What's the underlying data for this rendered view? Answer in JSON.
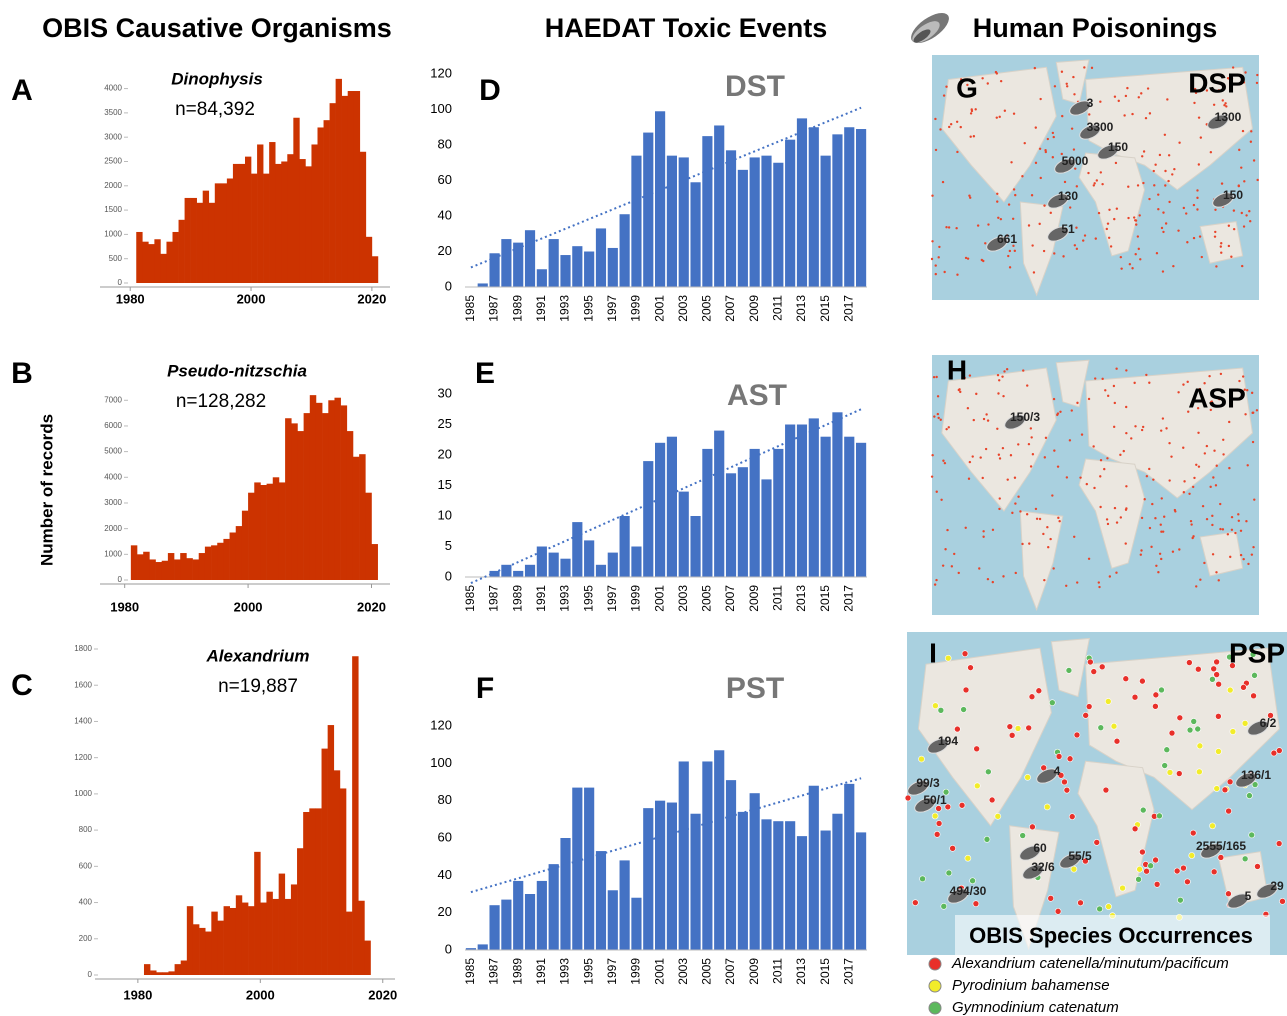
{
  "headings": [
    "OBIS Causative Organisms",
    "HAEDAT Toxic Events",
    "Human Poisonings"
  ],
  "chart_data": [
    {
      "type": "histogram",
      "panel": "A",
      "title": "Dinophysis",
      "subtitle": "n=84,392",
      "color": "#cc3300",
      "bins": [
        1981,
        1982,
        1983,
        1984,
        1985,
        1986,
        1987,
        1988,
        1989,
        1990,
        1991,
        1992,
        1993,
        1994,
        1995,
        1996,
        1997,
        1998,
        1999,
        2000,
        2001,
        2002,
        2003,
        2004,
        2005,
        2006,
        2007,
        2008,
        2009,
        2010,
        2011,
        2012,
        2013,
        2014,
        2015,
        2016,
        2017,
        2018,
        2019,
        2020,
        2021
      ],
      "values": [
        1050,
        850,
        800,
        900,
        600,
        850,
        1050,
        1300,
        1750,
        1750,
        1650,
        1900,
        1650,
        2050,
        2050,
        2150,
        2450,
        2450,
        2600,
        2250,
        2850,
        2250,
        2900,
        2450,
        2500,
        2650,
        3400,
        2550,
        2400,
        2850,
        3200,
        3350,
        3700,
        4200,
        3850,
        3950,
        3950,
        2700,
        950,
        550
      ],
      "xlim": [
        1975,
        2023
      ],
      "xticks": [
        1980,
        2000,
        2020
      ],
      "ylim": [
        0,
        4300
      ],
      "yticks": [
        0,
        500,
        1000,
        1500,
        2000,
        2500,
        3000,
        3500,
        4000
      ]
    },
    {
      "type": "histogram",
      "panel": "B",
      "title": "Pseudo-nitzschia",
      "subtitle": "n=128,282",
      "color": "#cc3300",
      "ylabel": "Number of records",
      "bins": [
        1981,
        1982,
        1983,
        1984,
        1985,
        1986,
        1987,
        1988,
        1989,
        1990,
        1991,
        1992,
        1993,
        1994,
        1995,
        1996,
        1997,
        1998,
        1999,
        2000,
        2001,
        2002,
        2003,
        2004,
        2005,
        2006,
        2007,
        2008,
        2009,
        2010,
        2011,
        2012,
        2013,
        2014,
        2015,
        2016,
        2017,
        2018,
        2019,
        2020,
        2021
      ],
      "values": [
        1350,
        1000,
        1100,
        800,
        700,
        750,
        1050,
        800,
        1050,
        850,
        800,
        1050,
        1300,
        1350,
        1450,
        1600,
        1850,
        2100,
        2700,
        3400,
        3800,
        3700,
        3750,
        4000,
        3800,
        6300,
        6100,
        5800,
        6500,
        7200,
        6900,
        6500,
        7000,
        7100,
        6800,
        5800,
        4800,
        4900,
        3400,
        1400
      ],
      "xlim": [
        1976,
        2023
      ],
      "xticks": [
        1980,
        2000,
        2020
      ],
      "ylim": [
        0,
        7400
      ],
      "yticks": [
        0,
        1000,
        2000,
        3000,
        4000,
        5000,
        6000,
        7000
      ]
    },
    {
      "type": "histogram",
      "panel": "C",
      "title": "Alexandrium",
      "subtitle": "n=19,887",
      "color": "#cc3300",
      "bins": [
        1981,
        1982,
        1983,
        1984,
        1985,
        1986,
        1987,
        1988,
        1989,
        1990,
        1991,
        1992,
        1993,
        1994,
        1995,
        1996,
        1997,
        1998,
        1999,
        2000,
        2001,
        2002,
        2003,
        2004,
        2005,
        2006,
        2007,
        2008,
        2009,
        2010,
        2011,
        2012,
        2013,
        2014,
        2015,
        2016,
        2017,
        2018
      ],
      "values": [
        60,
        25,
        15,
        15,
        20,
        60,
        80,
        380,
        280,
        260,
        240,
        350,
        300,
        380,
        370,
        440,
        400,
        380,
        680,
        400,
        460,
        420,
        560,
        420,
        500,
        700,
        900,
        920,
        920,
        1250,
        1380,
        1130,
        1030,
        350,
        1760,
        410,
        190
      ],
      "xlim": [
        1973,
        2022
      ],
      "xticks": [
        1980,
        2000,
        2020
      ],
      "ylim": [
        0,
        1800
      ],
      "yticks": [
        0,
        200,
        400,
        600,
        800,
        1000,
        1200,
        1400,
        1600,
        1800
      ]
    },
    {
      "type": "bar",
      "panel": "D",
      "title": "DST",
      "color": "#4472c4",
      "trend_start": 11,
      "trend_end": 101,
      "categories": [
        "1985",
        null,
        "1987",
        null,
        "1989",
        null,
        "1991",
        null,
        "1993",
        null,
        "1995",
        null,
        "1997",
        null,
        "1999",
        null,
        "2001",
        null,
        "2003",
        null,
        "2005",
        null,
        "2007",
        null,
        "2009",
        null,
        "2011",
        null,
        "2013",
        null,
        "2015",
        null,
        "2017",
        null
      ],
      "values": [
        0,
        2,
        19,
        27,
        25,
        32,
        10,
        27,
        18,
        23,
        20,
        33,
        22,
        41,
        74,
        87,
        99,
        74,
        73,
        59,
        85,
        91,
        77,
        66,
        73,
        74,
        70,
        83,
        95,
        90,
        74,
        86,
        90,
        89
      ],
      "ylim": [
        0,
        120
      ],
      "yticks": [
        0,
        20,
        40,
        60,
        80,
        100,
        120
      ]
    },
    {
      "type": "bar",
      "panel": "E",
      "title": "AST",
      "color": "#4472c4",
      "trend_start": -1,
      "trend_end": 27.5,
      "categories": [
        "1985",
        null,
        "1987",
        null,
        "1989",
        null,
        "1991",
        null,
        "1993",
        null,
        "1995",
        null,
        "1997",
        null,
        "1999",
        null,
        "2001",
        null,
        "2003",
        null,
        "2005",
        null,
        "2007",
        null,
        "2009",
        null,
        "2011",
        null,
        "2013",
        null,
        "2015",
        null,
        "2017",
        null
      ],
      "values": [
        0,
        0,
        1,
        2,
        1,
        2,
        5,
        4,
        3,
        9,
        6,
        2,
        4,
        10,
        5,
        19,
        22,
        23,
        14,
        10,
        21,
        24,
        17,
        18,
        21,
        16,
        21,
        25,
        25,
        26,
        23,
        27,
        23,
        22
      ],
      "ylim": [
        0,
        30
      ],
      "yticks": [
        0,
        5,
        10,
        15,
        20,
        25,
        30
      ]
    },
    {
      "type": "bar",
      "panel": "F",
      "title": "PST",
      "color": "#4472c4",
      "trend_start": 31,
      "trend_end": 92,
      "categories": [
        "1985",
        null,
        "1987",
        null,
        "1989",
        null,
        "1991",
        null,
        "1993",
        null,
        "1995",
        null,
        "1997",
        null,
        "1999",
        null,
        "2001",
        null,
        "2003",
        null,
        "2005",
        null,
        "2007",
        null,
        "2009",
        null,
        "2011",
        null,
        "2013",
        null,
        "2015",
        null,
        "2017",
        null
      ],
      "values": [
        1,
        3,
        24,
        27,
        37,
        30,
        37,
        46,
        60,
        87,
        87,
        53,
        32,
        48,
        28,
        76,
        80,
        79,
        101,
        73,
        101,
        107,
        91,
        74,
        84,
        70,
        69,
        69,
        61,
        88,
        64,
        73,
        89,
        63
      ],
      "ylim": [
        0,
        120
      ],
      "yticks": [
        0,
        20,
        40,
        60,
        80,
        100,
        120
      ]
    }
  ],
  "maps": [
    {
      "panel": "G",
      "code": "DSP",
      "labels": [
        "3",
        "3300",
        "5000",
        "150",
        "1300",
        "130",
        "150",
        "661",
        "51"
      ]
    },
    {
      "panel": "H",
      "code": "ASP",
      "labels": [
        "150/3"
      ]
    },
    {
      "panel": "I",
      "code": "PSP",
      "labels": [
        "194",
        "99/3",
        "50/1",
        "4",
        "60",
        "32/6",
        "55/5",
        "494/30",
        "2555/165",
        "136/1",
        "6/2",
        "29",
        "5"
      ]
    }
  ],
  "map_legend": {
    "title": "OBIS Species Occurrences",
    "items": [
      {
        "name": "Alexandrium catenella/minutum/pacificum",
        "color": "#e8302a"
      },
      {
        "name": "Pyrodinium bahamense",
        "color": "#f2ec2a"
      },
      {
        "name": "Gymnodinium catenatum",
        "color": "#5cb85c"
      }
    ]
  }
}
